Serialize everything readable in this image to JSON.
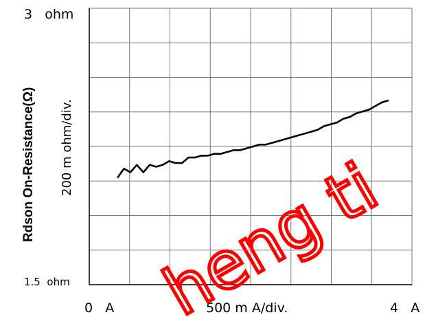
{
  "chart_data": {
    "type": "line",
    "ylabel": "Rdson On-Resistance(Ω)",
    "y_div_label": "200 m ohm/div.",
    "x_div_label": "500 m A/div.",
    "y_top_label": "3   ohm",
    "y_bottom_label": "1.5  ohm",
    "x_left_label": "0   A",
    "x_right_label": "4   A",
    "xlim": [
      0,
      4
    ],
    "ylim": [
      1.5,
      3.0
    ],
    "grid": true,
    "series": [
      {
        "color": "#000000",
        "points": [
          [
            0.35,
            2.08
          ],
          [
            0.43,
            2.13
          ],
          [
            0.51,
            2.11
          ],
          [
            0.59,
            2.15
          ],
          [
            0.67,
            2.11
          ],
          [
            0.75,
            2.15
          ],
          [
            0.83,
            2.14
          ],
          [
            0.91,
            2.15
          ],
          [
            0.99,
            2.17
          ],
          [
            1.07,
            2.16
          ],
          [
            1.15,
            2.16
          ],
          [
            1.23,
            2.19
          ],
          [
            1.31,
            2.19
          ],
          [
            1.39,
            2.2
          ],
          [
            1.47,
            2.2
          ],
          [
            1.55,
            2.21
          ],
          [
            1.63,
            2.21
          ],
          [
            1.71,
            2.22
          ],
          [
            1.79,
            2.23
          ],
          [
            1.87,
            2.23
          ],
          [
            1.95,
            2.24
          ],
          [
            2.03,
            2.25
          ],
          [
            2.11,
            2.26
          ],
          [
            2.19,
            2.26
          ],
          [
            2.27,
            2.27
          ],
          [
            2.35,
            2.28
          ],
          [
            2.43,
            2.29
          ],
          [
            2.51,
            2.3
          ],
          [
            2.59,
            2.31
          ],
          [
            2.67,
            2.32
          ],
          [
            2.75,
            2.33
          ],
          [
            2.83,
            2.34
          ],
          [
            2.91,
            2.36
          ],
          [
            2.99,
            2.37
          ],
          [
            3.07,
            2.38
          ],
          [
            3.15,
            2.4
          ],
          [
            3.23,
            2.41
          ],
          [
            3.31,
            2.43
          ],
          [
            3.39,
            2.44
          ],
          [
            3.47,
            2.45
          ],
          [
            3.55,
            2.47
          ],
          [
            3.63,
            2.49
          ],
          [
            3.71,
            2.5
          ]
        ]
      }
    ]
  },
  "watermark": {
    "text": "heng ti",
    "color": "#ff0000"
  }
}
